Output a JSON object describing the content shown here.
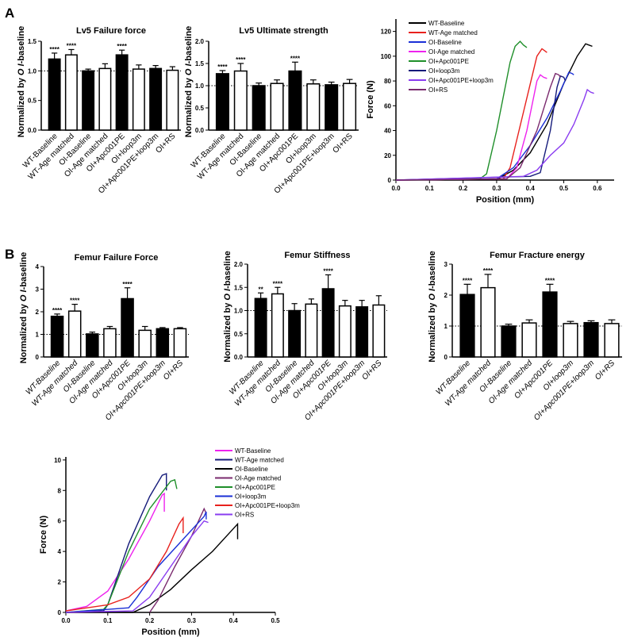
{
  "panels": [
    "A",
    "B"
  ],
  "chart_data": [
    {
      "type": "bar",
      "title": "Lv5 Failure force",
      "ylabel_parts": [
        "Normalized by ",
        "O I",
        "-baseline"
      ],
      "categories": [
        "WT-Baseline",
        "WT-Age matched",
        "OI-Baseline",
        "OI-Age matched",
        "OI+Apc001PE",
        "OI+loop3m",
        "OI+Apc001PE+loop3m",
        "OI+RS"
      ],
      "values": [
        1.2,
        1.27,
        1.0,
        1.04,
        1.27,
        1.03,
        1.04,
        1.01
      ],
      "errors": [
        0.1,
        0.09,
        0.03,
        0.08,
        0.08,
        0.07,
        0.05,
        0.06
      ],
      "significance": [
        "****",
        "****",
        "",
        "",
        "****",
        "",
        "",
        ""
      ],
      "fills": [
        "#000000",
        "#ffffff",
        "#000000",
        "#ffffff",
        "#000000",
        "#ffffff",
        "#000000",
        "#ffffff"
      ],
      "ylim": [
        0,
        1.5
      ],
      "yticks": [
        "0.0",
        "0.5",
        "1.0",
        "1.5"
      ],
      "reference_line": 1.0,
      "italic_labels": false
    },
    {
      "type": "bar",
      "title": "Lv5 Ultimate strength",
      "ylabel_parts": [
        "Normalized by ",
        "O I",
        "-baseline"
      ],
      "categories": [
        "WT-Baseline",
        "WT-Age matched",
        "OI-Baseline",
        "OI-Age matched",
        "OI+Apc001PE",
        "OI+loop3m",
        "OI+Apc001PE+loop3m",
        "OI+RS"
      ],
      "values": [
        1.27,
        1.33,
        1.0,
        1.05,
        1.33,
        1.04,
        1.02,
        1.05
      ],
      "errors": [
        0.07,
        0.17,
        0.06,
        0.08,
        0.2,
        0.09,
        0.06,
        0.09
      ],
      "significance": [
        "****",
        "****",
        "",
        "",
        "****",
        "",
        "",
        ""
      ],
      "fills": [
        "#000000",
        "#ffffff",
        "#000000",
        "#ffffff",
        "#000000",
        "#ffffff",
        "#000000",
        "#ffffff"
      ],
      "ylim": [
        0,
        2.0
      ],
      "yticks": [
        "0.0",
        "0.5",
        "1.0",
        "1.5",
        "2.0"
      ],
      "reference_line": 1.0,
      "italic_labels": false
    },
    {
      "type": "line",
      "xlabel": "Position (mm)",
      "ylabel": "Force (N)",
      "xlim": [
        0,
        0.65
      ],
      "ylim": [
        0,
        130
      ],
      "xticks": [
        "0.0",
        "0.1",
        "0.2",
        "0.3",
        "0.4",
        "0.5",
        "0.6"
      ],
      "yticks": [
        "0",
        "20",
        "40",
        "60",
        "80",
        "100",
        "120"
      ],
      "legend": "top-left",
      "series": [
        {
          "name": "WT-Baseline",
          "color": "#000000",
          "x": [
            0,
            0.3,
            0.35,
            0.4,
            0.45,
            0.5,
            0.54,
            0.565,
            0.575,
            0.585
          ],
          "y": [
            0,
            0.5,
            8,
            22,
            45,
            78,
            100,
            110,
            109,
            108
          ]
        },
        {
          "name": "WT-Age matched",
          "color": "#e8211d",
          "x": [
            0,
            0.32,
            0.34,
            0.38,
            0.42,
            0.435,
            0.445,
            0.45
          ],
          "y": [
            0,
            1,
            10,
            55,
            100,
            106,
            104,
            103
          ]
        },
        {
          "name": "OI-Baseline",
          "color": "#1a2fd6",
          "x": [
            0,
            0.3,
            0.35,
            0.4,
            0.45,
            0.49,
            0.515,
            0.525,
            0.53
          ],
          "y": [
            0,
            1,
            10,
            28,
            50,
            72,
            87,
            86,
            85
          ]
        },
        {
          "name": "OI-Age matched",
          "color": "#ee22ee",
          "x": [
            0,
            0.33,
            0.36,
            0.39,
            0.42,
            0.43,
            0.44,
            0.45
          ],
          "y": [
            0,
            1,
            10,
            40,
            80,
            85,
            83,
            82
          ]
        },
        {
          "name": "OI+Apc001PE",
          "color": "#1f8f2a",
          "x": [
            0,
            0.25,
            0.27,
            0.3,
            0.34,
            0.355,
            0.37,
            0.38,
            0.39
          ],
          "y": [
            0,
            1,
            5,
            40,
            95,
            108,
            112,
            109,
            107
          ]
        },
        {
          "name": "OI+loop3m",
          "color": "#141a7a",
          "x": [
            0,
            0.4,
            0.43,
            0.46,
            0.48,
            0.49,
            0.5,
            0.505
          ],
          "y": [
            0,
            3,
            6,
            40,
            75,
            84,
            83,
            80
          ]
        },
        {
          "name": "OI+Apc001PE+loop3m",
          "color": "#8a3cf0",
          "x": [
            0,
            0.38,
            0.42,
            0.46,
            0.5,
            0.53,
            0.56,
            0.57,
            0.58,
            0.59
          ],
          "y": [
            0,
            3,
            8,
            20,
            30,
            45,
            65,
            73,
            71,
            70
          ]
        },
        {
          "name": "OI+RS",
          "color": "#7a2a6e",
          "x": [
            0,
            0.33,
            0.37,
            0.42,
            0.46,
            0.475,
            0.485,
            0.49
          ],
          "y": [
            0,
            1,
            10,
            40,
            75,
            86,
            85,
            83
          ]
        }
      ]
    },
    {
      "type": "bar",
      "title": "Femur Failure Force",
      "ylabel_parts": [
        "Normalized by ",
        "O I",
        "-baseline"
      ],
      "categories": [
        "WT-Baseline",
        "WT-Age matched",
        "OI-Baseline",
        "OI-Age matched",
        "OI+Apc001PE",
        "OI+loop3m",
        "OI+Apc001PE+loop3m",
        "OI+RS"
      ],
      "values": [
        1.8,
        2.03,
        1.02,
        1.25,
        2.58,
        1.18,
        1.25,
        1.25
      ],
      "errors": [
        0.1,
        0.3,
        0.08,
        0.1,
        0.48,
        0.17,
        0.05,
        0.05
      ],
      "significance": [
        "****",
        "****",
        "",
        "",
        "****",
        "",
        "",
        ""
      ],
      "fills": [
        "#000000",
        "#ffffff",
        "#000000",
        "#ffffff",
        "#000000",
        "#ffffff",
        "#000000",
        "#ffffff"
      ],
      "ylim": [
        0,
        4
      ],
      "yticks": [
        "0",
        "1",
        "2",
        "3",
        "4"
      ],
      "reference_line": 1.0,
      "italic_labels": true
    },
    {
      "type": "bar",
      "title": "Femur Stiffness",
      "ylabel_parts": [
        "Normalized by ",
        "O I",
        "-baseline"
      ],
      "categories": [
        "WT-Baseline",
        "WT-Age matched",
        "OI-Baseline",
        "OI-Age matched",
        "OI+Apc001PE",
        "OI+loop3m",
        "OI+Apc001PE+loop3m",
        "OI+RS"
      ],
      "values": [
        1.26,
        1.36,
        1.0,
        1.14,
        1.47,
        1.1,
        1.08,
        1.12
      ],
      "errors": [
        0.12,
        0.14,
        0.15,
        0.11,
        0.3,
        0.12,
        0.14,
        0.2
      ],
      "significance": [
        "**",
        "****",
        "",
        "",
        "****",
        "",
        "",
        ""
      ],
      "fills": [
        "#000000",
        "#ffffff",
        "#000000",
        "#ffffff",
        "#000000",
        "#ffffff",
        "#000000",
        "#ffffff"
      ],
      "ylim": [
        0,
        2.0
      ],
      "yticks": [
        "0.0",
        "0.5",
        "1.0",
        "1.5",
        "2.0"
      ],
      "reference_line": 1.0,
      "italic_labels": true
    },
    {
      "type": "bar",
      "title": "Femur Fracture energy",
      "ylabel_parts": [
        "Normalized by ",
        "O I",
        "-baseline"
      ],
      "categories": [
        "WT-Baseline",
        "WT-Age matched",
        "OI-Baseline",
        "OI-Age matched",
        "OI+Apc001PE",
        "OI+loop3m",
        "OI+Apc001PE+loop3m",
        "OI+RS"
      ],
      "values": [
        2.02,
        2.24,
        1.0,
        1.1,
        2.1,
        1.08,
        1.11,
        1.08
      ],
      "errors": [
        0.33,
        0.43,
        0.06,
        0.1,
        0.25,
        0.07,
        0.06,
        0.12
      ],
      "significance": [
        "****",
        "****",
        "",
        "",
        "****",
        "",
        "",
        ""
      ],
      "fills": [
        "#000000",
        "#ffffff",
        "#000000",
        "#ffffff",
        "#000000",
        "#ffffff",
        "#000000",
        "#ffffff"
      ],
      "ylim": [
        0,
        3
      ],
      "yticks": [
        "0",
        "1",
        "2",
        "3"
      ],
      "reference_line": 1.0,
      "italic_labels": true
    },
    {
      "type": "line",
      "xlabel": "Position (mm)",
      "ylabel": "Force (N)",
      "xlim": [
        0,
        0.5
      ],
      "ylim": [
        0,
        10.2
      ],
      "xticks": [
        "0.0",
        "0.1",
        "0.2",
        "0.3",
        "0.4",
        "0.5"
      ],
      "yticks": [
        "0",
        "2",
        "4",
        "6",
        "8",
        "10"
      ],
      "legend": "top-right",
      "series": [
        {
          "name": "WT-Baseline",
          "color": "#ee22ee",
          "x": [
            0,
            0.05,
            0.1,
            0.15,
            0.2,
            0.23,
            0.235,
            0.235
          ],
          "y": [
            0.1,
            0.4,
            1.4,
            3.5,
            6,
            7.7,
            7.8,
            6.6
          ]
        },
        {
          "name": "WT-Age matched",
          "color": "#141a7a",
          "x": [
            0,
            0.09,
            0.1,
            0.15,
            0.2,
            0.23,
            0.24,
            0.24
          ],
          "y": [
            0,
            0.1,
            0.5,
            4.5,
            7.6,
            9,
            9.1,
            8
          ]
        },
        {
          "name": "OI-Baseline",
          "color": "#000000",
          "x": [
            0,
            0.16,
            0.2,
            0.25,
            0.3,
            0.35,
            0.4,
            0.41,
            0.41
          ],
          "y": [
            0,
            0,
            0.5,
            1.5,
            2.8,
            4,
            5.5,
            5.8,
            4.8
          ]
        },
        {
          "name": "OI-Age matched",
          "color": "#7a2a6e",
          "x": [
            0.2,
            0.22,
            0.26,
            0.3,
            0.33,
            0.335
          ],
          "y": [
            0,
            0.8,
            3,
            5,
            6.8,
            6.5
          ]
        },
        {
          "name": "OI+Apc001PE",
          "color": "#1f8f2a",
          "x": [
            0,
            0.09,
            0.1,
            0.15,
            0.2,
            0.25,
            0.26,
            0.265
          ],
          "y": [
            0,
            0.2,
            0.5,
            4,
            6.8,
            8.6,
            8.7,
            8.1
          ]
        },
        {
          "name": "OI+loop3m",
          "color": "#1a2fd6",
          "x": [
            0,
            0.1,
            0.15,
            0.17,
            0.22,
            0.28,
            0.33,
            0.335,
            0.335
          ],
          "y": [
            0,
            0.2,
            0.3,
            1,
            3,
            4.8,
            6.3,
            6.6,
            6.1
          ]
        },
        {
          "name": "OI+Apc001PE+loop3m",
          "color": "#e8211d",
          "x": [
            0,
            0.1,
            0.15,
            0.2,
            0.24,
            0.27,
            0.28,
            0.28
          ],
          "y": [
            0.1,
            0.5,
            1,
            2.2,
            4,
            5.8,
            6.2,
            5.2
          ]
        },
        {
          "name": "OI+RS",
          "color": "#8a3cf0",
          "x": [
            0,
            0.16,
            0.2,
            0.25,
            0.3,
            0.33,
            0.34
          ],
          "y": [
            0,
            0.1,
            1,
            3,
            5,
            6,
            5.9
          ]
        }
      ]
    }
  ]
}
